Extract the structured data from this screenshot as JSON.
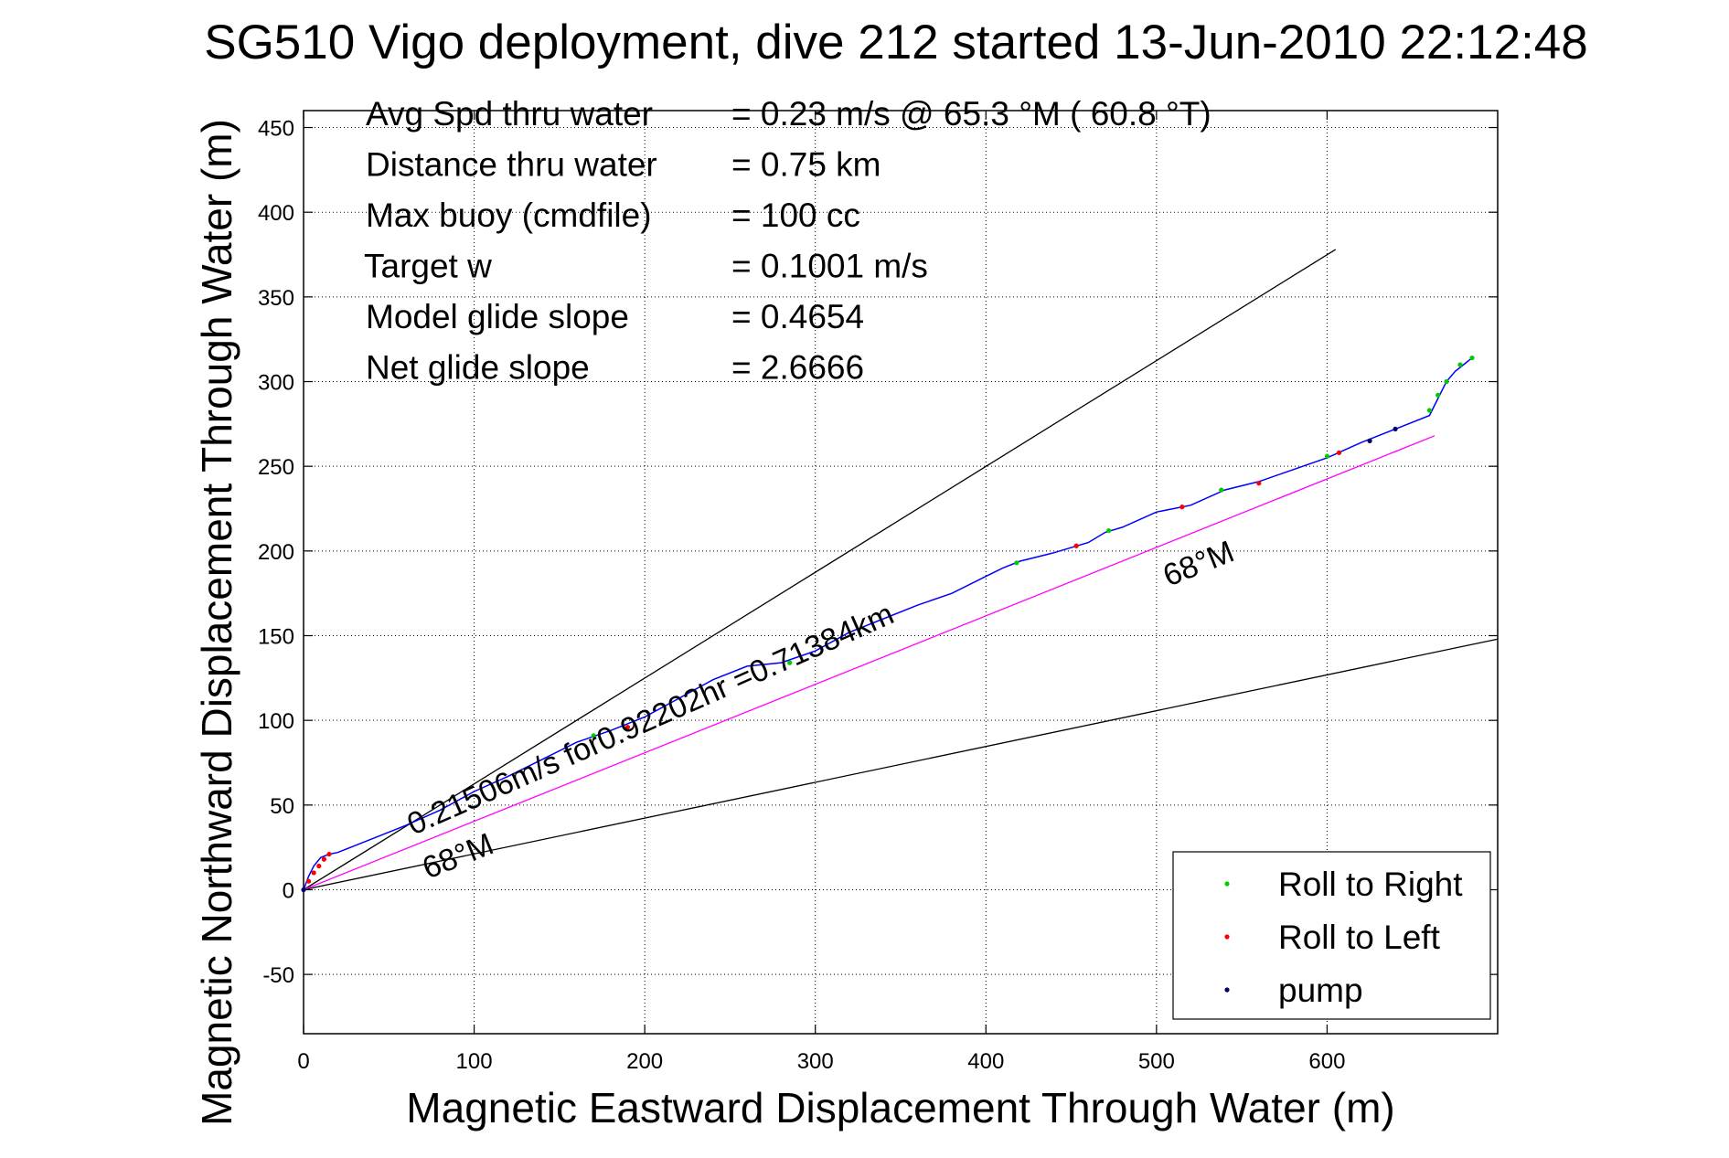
{
  "chart_data": {
    "type": "line",
    "title": "SG510 Vigo deployment, dive 212 started 13-Jun-2010 22:12:48",
    "xlabel": "Magnetic Eastward Displacement Through Water (m)",
    "ylabel": "Magnetic Northward Displacement Through Water (m)",
    "xlim": [
      0,
      700
    ],
    "ylim": [
      -85,
      460
    ],
    "xticks": [
      0,
      100,
      200,
      300,
      400,
      500,
      600
    ],
    "yticks": [
      -50,
      0,
      50,
      100,
      150,
      200,
      250,
      300,
      350,
      400,
      450
    ],
    "grid": true,
    "legend_position": "bottom-right",
    "stats": [
      {
        "label": "Avg Spd thru water",
        "value": "=  0.23 m/s @  65.3 °M ( 60.8 °T)"
      },
      {
        "label": "Distance thru water",
        "value": "=  0.75 km"
      },
      {
        "label": "Max buoy (cmdfile)",
        "value": "= 100 cc"
      },
      {
        "label": "Target w",
        "value": "= 0.1001 m/s"
      },
      {
        "label": "Model glide slope",
        "value": "= 0.4654"
      },
      {
        "label": "Net glide slope",
        "value": "= 2.6666"
      }
    ],
    "annotations": {
      "track_summary": "0.21506m/s for0.92202hr =0.71384km",
      "heading_upper": "68°M",
      "heading_lower": "68°M"
    },
    "reference_lines": [
      {
        "name": "upper-bound",
        "color": "#000000",
        "x": [
          0,
          605
        ],
        "y": [
          0,
          378
        ]
      },
      {
        "name": "lower-bound",
        "color": "#000000",
        "x": [
          0,
          700
        ],
        "y": [
          0,
          148
        ]
      },
      {
        "name": "net-course",
        "color": "#ff00ff",
        "x": [
          0,
          663
        ],
        "y": [
          0,
          268
        ]
      }
    ],
    "track": {
      "color": "#0000ff",
      "x": [
        0,
        3,
        6,
        10,
        15,
        20,
        30,
        45,
        60,
        80,
        100,
        120,
        140,
        160,
        180,
        200,
        220,
        240,
        260,
        280,
        300,
        320,
        340,
        360,
        380,
        400,
        410,
        420,
        440,
        460,
        470,
        480,
        500,
        520,
        540,
        560,
        580,
        600,
        620,
        640,
        660,
        665,
        670,
        675,
        680,
        685
      ],
      "y": [
        0,
        8,
        14,
        19,
        21,
        22,
        26,
        32,
        38,
        47,
        58,
        67,
        77,
        87,
        94,
        102,
        113,
        124,
        132,
        134,
        141,
        152,
        160,
        168,
        175,
        185,
        190,
        194,
        199,
        205,
        211,
        214,
        223,
        227,
        236,
        241,
        248,
        255,
        264,
        272,
        280,
        290,
        300,
        306,
        310,
        314
      ]
    },
    "markers": [
      {
        "name": "Roll to Right",
        "color": "#00cc00",
        "points": [
          [
            170,
            91
          ],
          [
            285,
            134
          ],
          [
            418,
            193
          ],
          [
            472,
            212
          ],
          [
            538,
            236
          ],
          [
            600,
            256
          ],
          [
            660,
            283
          ],
          [
            665,
            292
          ],
          [
            670,
            300
          ],
          [
            678,
            310
          ],
          [
            685,
            314
          ]
        ]
      },
      {
        "name": "Roll to Left",
        "color": "#ff0000",
        "points": [
          [
            3,
            5
          ],
          [
            6,
            10
          ],
          [
            9,
            14
          ],
          [
            12,
            18
          ],
          [
            15,
            21
          ],
          [
            190,
            96
          ],
          [
            453,
            203
          ],
          [
            515,
            226
          ],
          [
            560,
            240
          ],
          [
            607,
            258
          ]
        ]
      },
      {
        "name": "pump",
        "color": "#000066",
        "points": [
          [
            0,
            0
          ],
          [
            625,
            265
          ],
          [
            640,
            272
          ]
        ]
      }
    ]
  }
}
